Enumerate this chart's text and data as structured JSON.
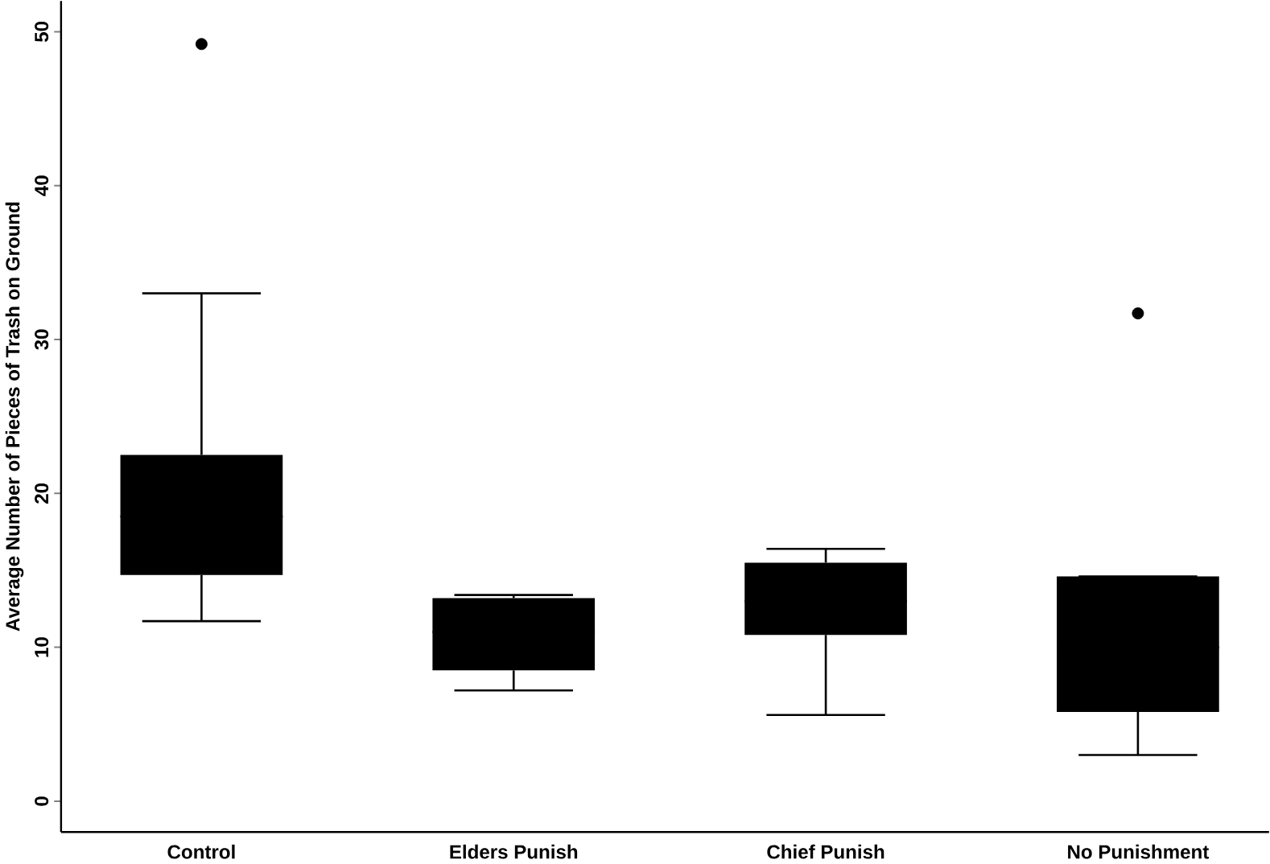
{
  "chart_data": {
    "type": "box",
    "ylabel": "Average Number of Pieces of Trash on Ground",
    "categories": [
      "Control",
      "Elders Punish",
      "Chief Punish",
      "No Punishment"
    ],
    "boxes": [
      {
        "low": 11.7,
        "q1": 14.7,
        "median": 18.5,
        "q3": 22.5,
        "high": 33.0,
        "outliers": [
          49.2
        ]
      },
      {
        "low": 7.2,
        "q1": 8.5,
        "median": 11.0,
        "q3": 13.2,
        "high": 13.4
      },
      {
        "low": 5.6,
        "q1": 10.8,
        "median": 13.0,
        "q3": 15.5,
        "high": 16.4
      },
      {
        "low": 3.0,
        "q1": 5.8,
        "median": 10.0,
        "q3": 14.6,
        "high": 14.6,
        "outliers": [
          31.7
        ]
      }
    ],
    "color": "#000000",
    "ylim": [
      -2,
      52
    ],
    "yticks": [
      0,
      10,
      20,
      30,
      40,
      50
    ],
    "grid": false
  }
}
